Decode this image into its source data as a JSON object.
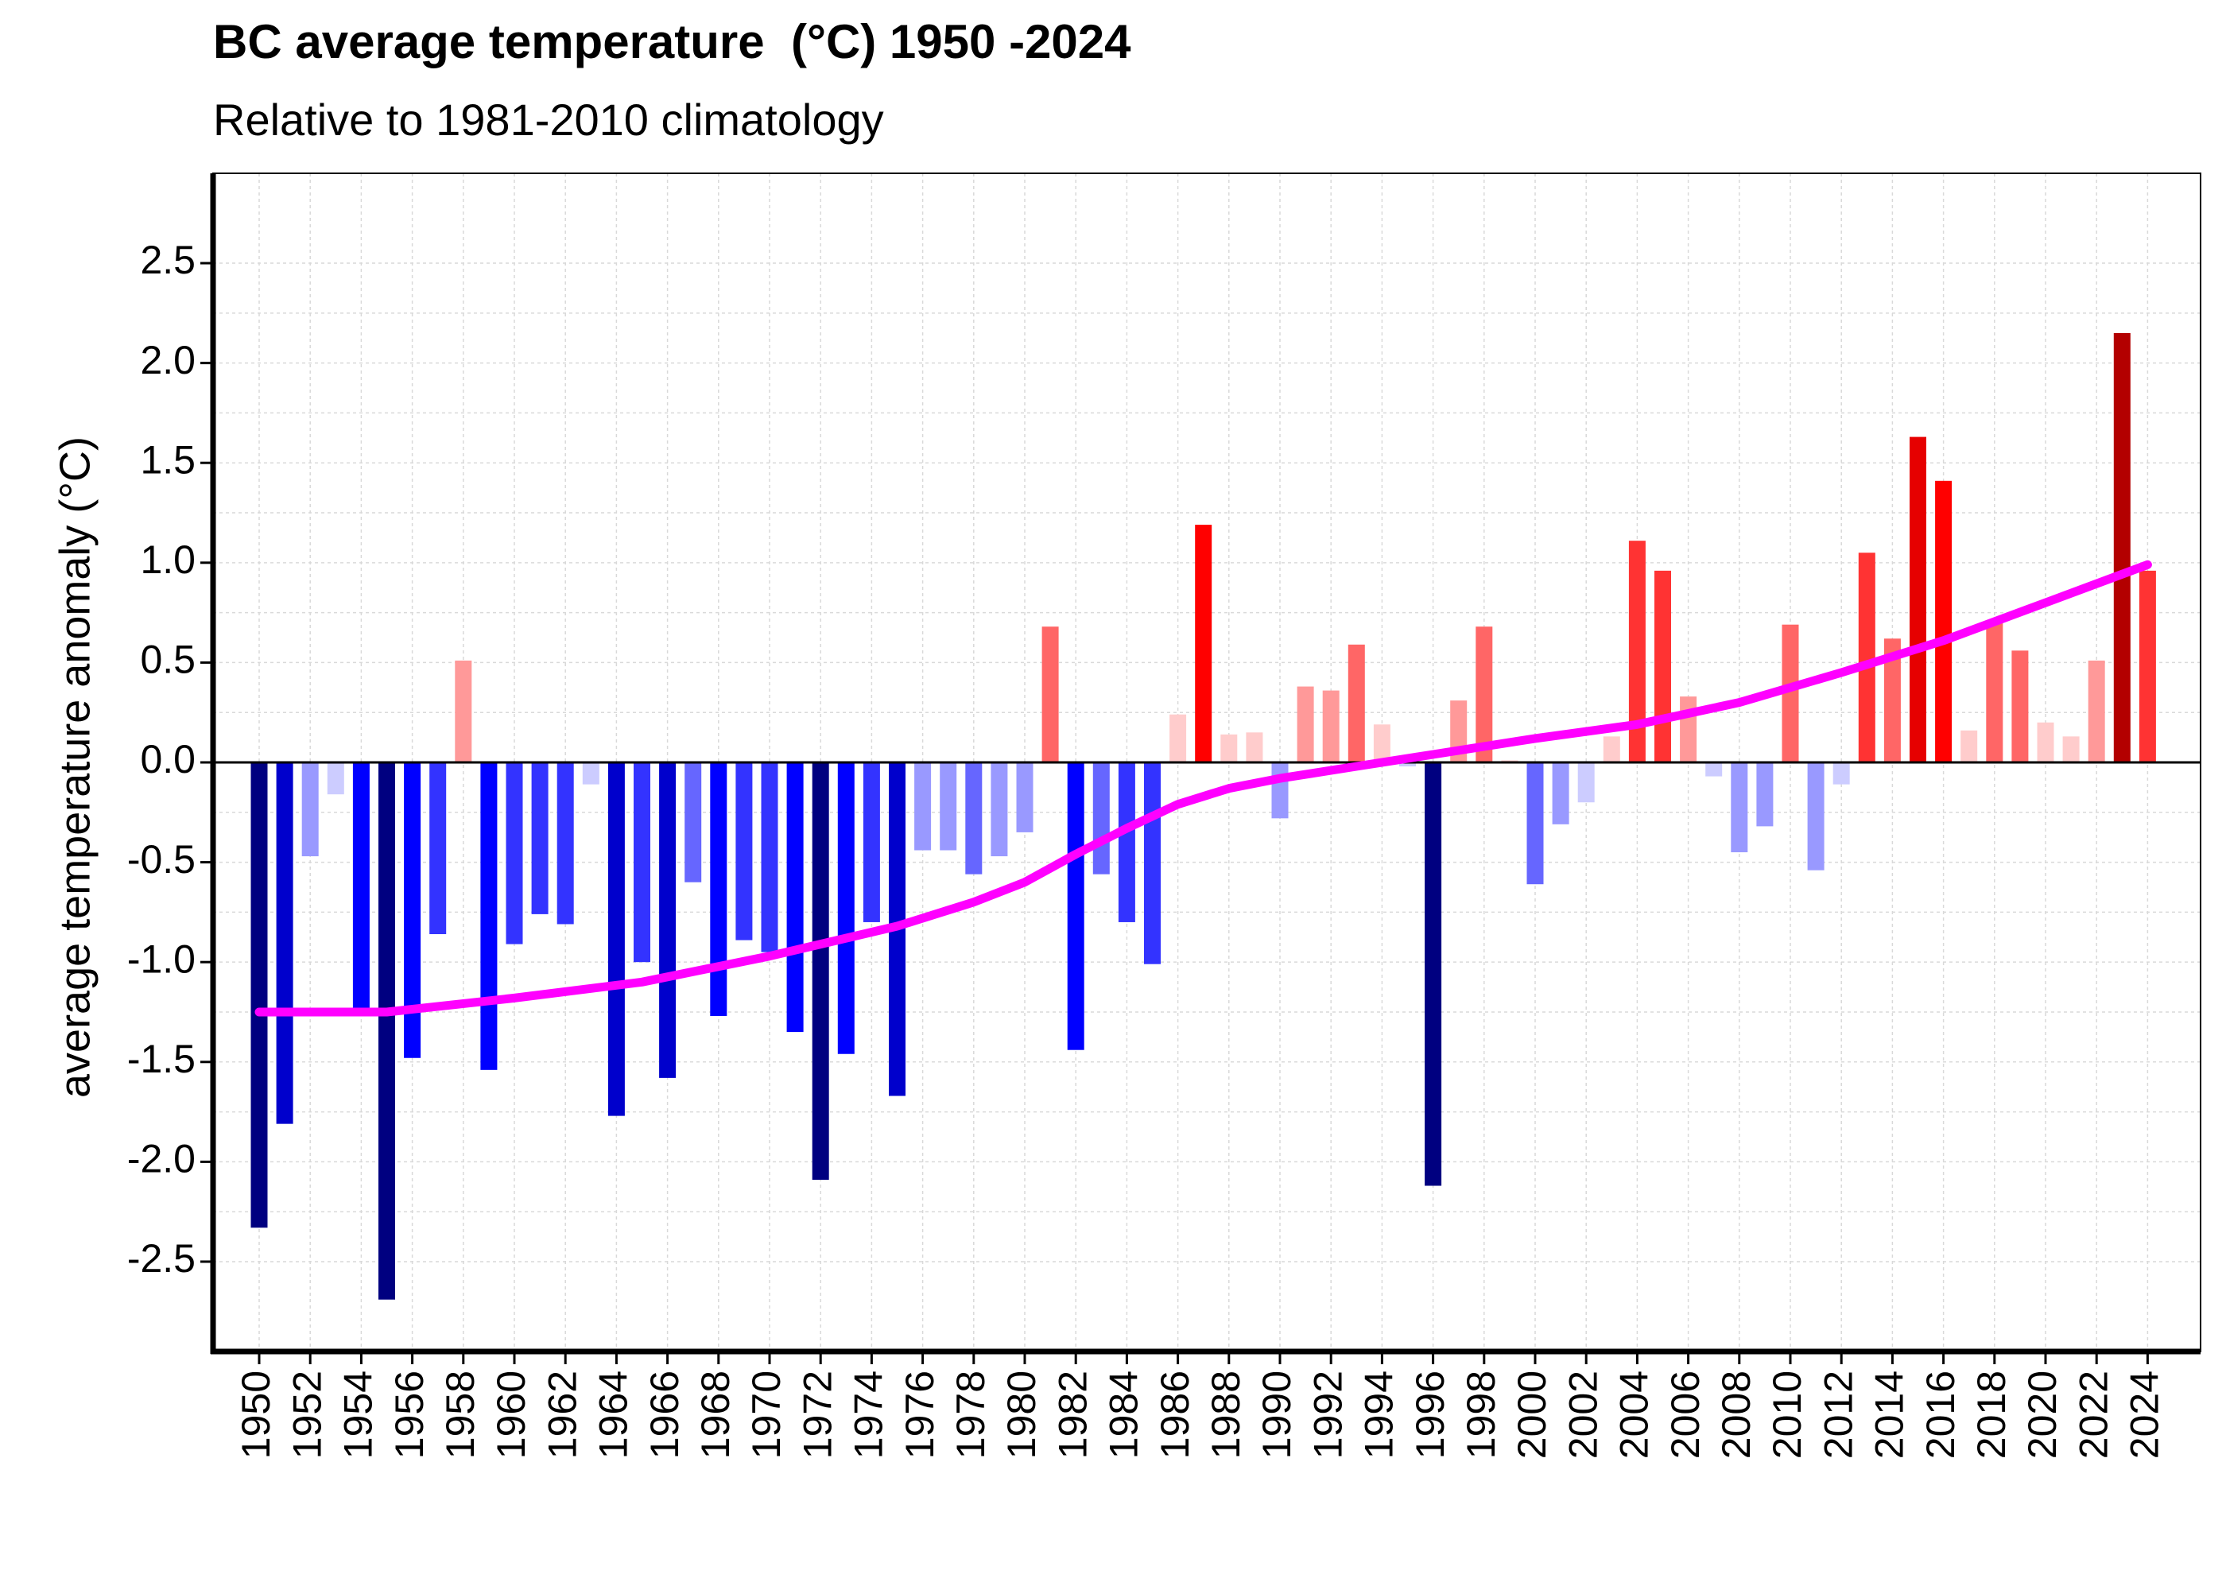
{
  "chart_data": {
    "type": "bar",
    "title": "BC average temperature  (°C) 1950 -2024",
    "subtitle": "Relative to 1981-2010 climatology",
    "ylabel": "average temperature anomaly (°C)",
    "xlabel": "",
    "ylim": [
      -2.95,
      2.95
    ],
    "yticks": [
      2.5,
      2.0,
      1.5,
      1.0,
      0.5,
      0.0,
      -0.5,
      -1.0,
      -1.5,
      -2.0,
      -2.5
    ],
    "ytick_labels": [
      "2.5",
      "2.0",
      "1.5",
      "1.0",
      "0.5",
      "0.0",
      "-0.5",
      "-1.0",
      "-1.5",
      "-2.0",
      "-2.5"
    ],
    "xtick_labels": [
      "1950",
      "1952",
      "1954",
      "1956",
      "1958",
      "1960",
      "1962",
      "1964",
      "1966",
      "1968",
      "1970",
      "1972",
      "1974",
      "1976",
      "1978",
      "1980",
      "1982",
      "1984",
      "1986",
      "1988",
      "1990",
      "1992",
      "1994",
      "1996",
      "1998",
      "2000",
      "2002",
      "2004",
      "2006",
      "2008",
      "2010",
      "2012",
      "2014",
      "2016",
      "2018",
      "2020",
      "2022",
      "2024"
    ],
    "grid": true,
    "categories": [
      1950,
      1951,
      1952,
      1953,
      1954,
      1955,
      1956,
      1957,
      1958,
      1959,
      1960,
      1961,
      1962,
      1963,
      1964,
      1965,
      1966,
      1967,
      1968,
      1969,
      1970,
      1971,
      1972,
      1973,
      1974,
      1975,
      1976,
      1977,
      1978,
      1979,
      1980,
      1981,
      1982,
      1983,
      1984,
      1985,
      1986,
      1987,
      1988,
      1989,
      1990,
      1991,
      1992,
      1993,
      1994,
      1995,
      1996,
      1997,
      1998,
      1999,
      2000,
      2001,
      2002,
      2003,
      2004,
      2005,
      2006,
      2007,
      2008,
      2009,
      2010,
      2011,
      2012,
      2013,
      2014,
      2015,
      2016,
      2017,
      2018,
      2019,
      2020,
      2021,
      2022,
      2023,
      2024
    ],
    "values": [
      -2.33,
      -1.81,
      -0.47,
      -0.16,
      -1.24,
      -2.69,
      -1.48,
      -0.86,
      0.51,
      -1.54,
      -0.91,
      -0.76,
      -0.81,
      -0.11,
      -1.77,
      -1.0,
      -1.58,
      -0.6,
      -1.27,
      -0.89,
      -0.95,
      -1.35,
      -2.09,
      -1.46,
      -0.8,
      -1.67,
      -0.44,
      -0.44,
      -0.56,
      -0.47,
      -0.35,
      0.68,
      -1.44,
      -0.56,
      -0.8,
      -1.01,
      0.24,
      1.19,
      0.14,
      0.15,
      -0.28,
      0.38,
      0.36,
      0.59,
      0.19,
      -0.02,
      -2.12,
      0.31,
      0.68,
      0.01,
      -0.61,
      -0.31,
      -0.2,
      0.13,
      1.11,
      0.96,
      0.33,
      -0.07,
      -0.45,
      -0.32,
      0.69,
      -0.54,
      -0.11,
      1.05,
      0.62,
      1.63,
      1.41,
      0.16,
      0.7,
      0.56,
      0.2,
      0.13,
      0.51,
      2.15,
      0.96
    ],
    "trend": {
      "x": [
        1950,
        1955,
        1960,
        1965,
        1970,
        1975,
        1978,
        1980,
        1982,
        1984,
        1986,
        1988,
        1990,
        1993,
        1996,
        2000,
        2004,
        2008,
        2012,
        2016,
        2020,
        2024
      ],
      "y": [
        -1.25,
        -1.25,
        -1.18,
        -1.1,
        -0.97,
        -0.82,
        -0.7,
        -0.6,
        -0.46,
        -0.33,
        -0.21,
        -0.13,
        -0.08,
        -0.02,
        0.04,
        0.12,
        0.19,
        0.3,
        0.45,
        0.61,
        0.8,
        0.99
      ],
      "color": "#ff00ff"
    },
    "colors": {
      "trend": "#ff00ff",
      "zero_line": "#000000",
      "grid": "#d9d9d9",
      "cold_scale": [
        "#ccccff",
        "#9999ff",
        "#6666ff",
        "#3333ff",
        "#0000ff",
        "#0000cc",
        "#000080"
      ],
      "warm_scale": [
        "#ffcccc",
        "#ff9999",
        "#ff6666",
        "#ff3333",
        "#ff0000",
        "#e60000",
        "#b30000"
      ]
    }
  }
}
